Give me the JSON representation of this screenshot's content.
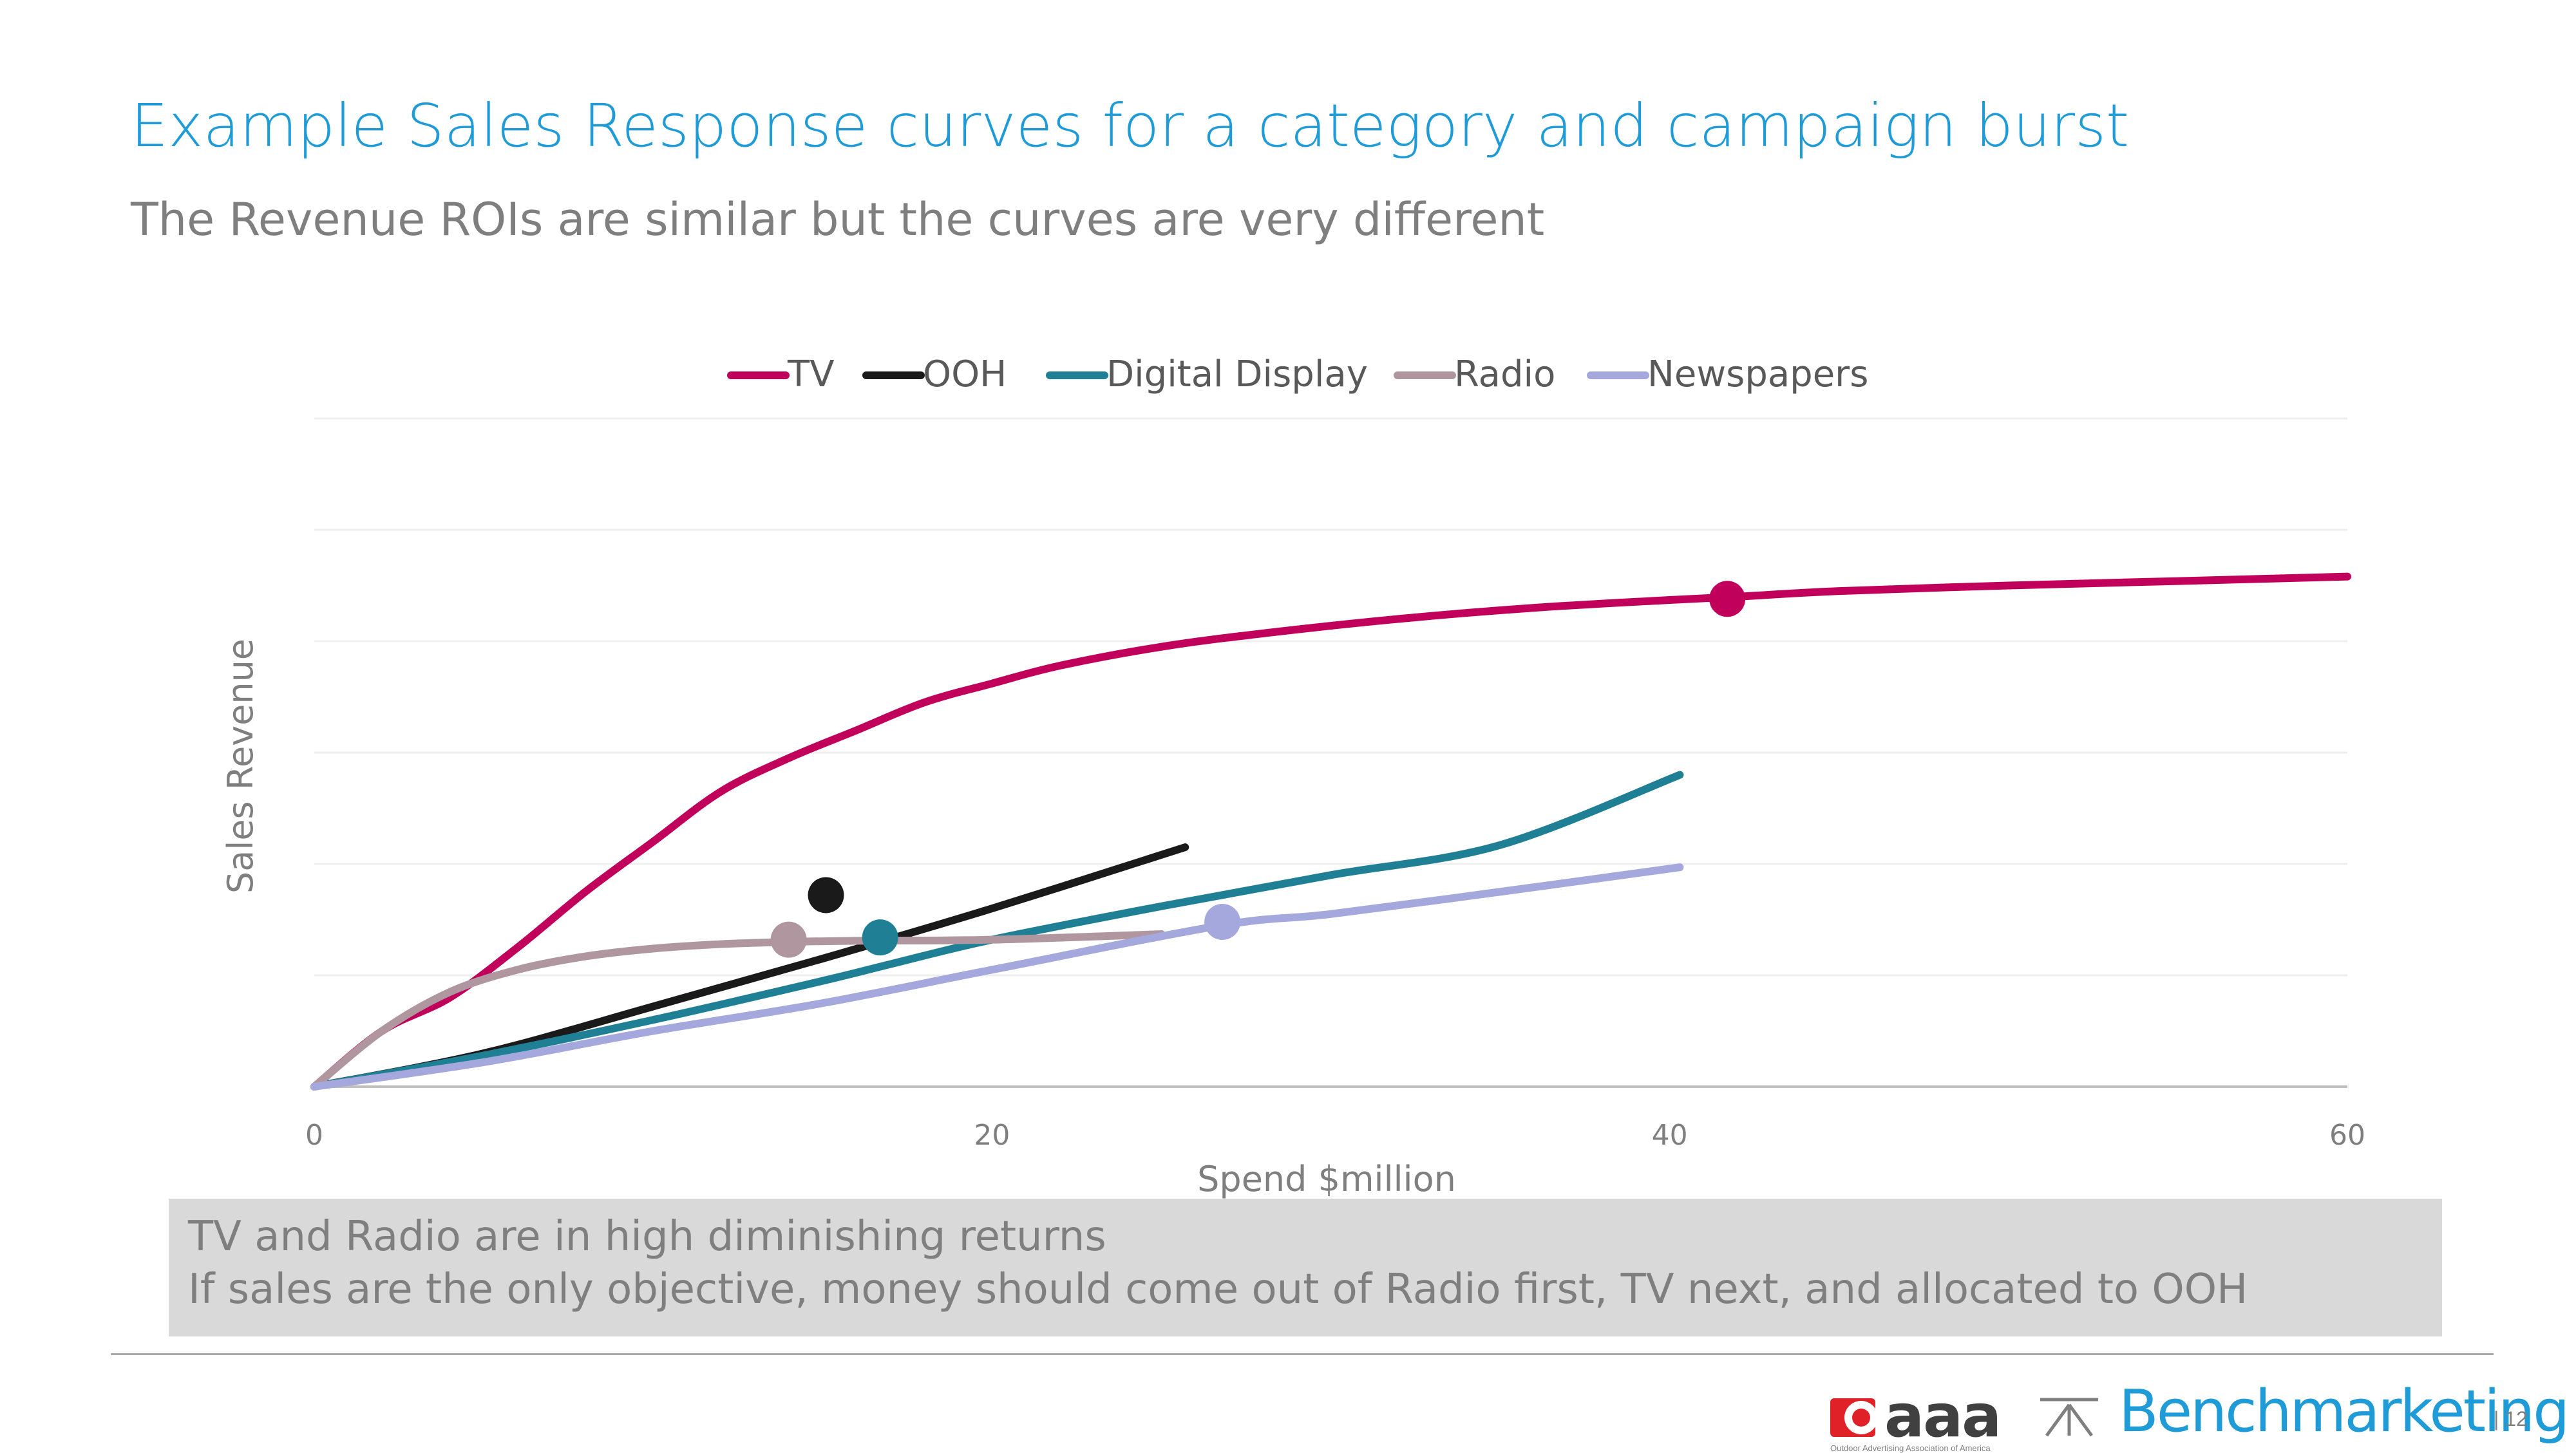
{
  "slide": {
    "title": "Example Sales Response curves for a category and campaign burst",
    "subtitle": "The Revenue ROIs are similar but the curves are very different",
    "callout": [
      "TV and Radio are in high diminishing returns",
      "If sales are the only objective, money should come out of Radio first, TV next, and allocated to OOH"
    ],
    "page_number": "| 12",
    "logos": {
      "oaaa_name": "aaa",
      "oaaa_tagline": "Outdoor Advertising Association of America",
      "benchmarketing": "Benchmarketing"
    }
  },
  "chart_data": {
    "type": "line",
    "title": "",
    "xlabel": "Spend $million",
    "ylabel": "Sales Revenue",
    "xlim": [
      0,
      60
    ],
    "ylim": [
      0,
      6
    ],
    "x_ticks": [
      0,
      20,
      40,
      60
    ],
    "y_tick_labels_shown": false,
    "grid": "horizontal",
    "legend_position": "top",
    "series": [
      {
        "name": "TV",
        "color": "#c0005a",
        "points": [
          [
            0,
            0
          ],
          [
            2,
            0.5
          ],
          [
            4,
            0.8
          ],
          [
            6,
            1.25
          ],
          [
            8,
            1.75
          ],
          [
            10,
            2.2
          ],
          [
            12,
            2.65
          ],
          [
            14,
            2.95
          ],
          [
            16,
            3.2
          ],
          [
            18,
            3.45
          ],
          [
            20,
            3.62
          ],
          [
            22,
            3.78
          ],
          [
            25,
            3.95
          ],
          [
            28,
            4.07
          ],
          [
            32,
            4.2
          ],
          [
            36,
            4.3
          ],
          [
            40,
            4.37
          ],
          [
            42,
            4.4
          ],
          [
            45,
            4.45
          ],
          [
            50,
            4.5
          ],
          [
            55,
            4.54
          ],
          [
            60,
            4.58
          ]
        ],
        "marker": [
          41.7,
          4.38
        ]
      },
      {
        "name": "OOH",
        "color": "#1a1a1a",
        "points": [
          [
            0,
            0
          ],
          [
            5,
            0.3
          ],
          [
            10,
            0.72
          ],
          [
            15,
            1.15
          ],
          [
            20,
            1.6
          ],
          [
            25.7,
            2.15
          ]
        ],
        "marker": [
          15.1,
          1.72
        ]
      },
      {
        "name": "Digital Display",
        "color": "#1f7f95",
        "points": [
          [
            0,
            0
          ],
          [
            5,
            0.28
          ],
          [
            10,
            0.6
          ],
          [
            15,
            0.95
          ],
          [
            17,
            1.1
          ],
          [
            20,
            1.32
          ],
          [
            25,
            1.62
          ],
          [
            30,
            1.9
          ],
          [
            35,
            2.17
          ],
          [
            40.3,
            2.8
          ]
        ],
        "marker": [
          16.7,
          1.34
        ]
      },
      {
        "name": "Radio",
        "color": "#b0969e",
        "points": [
          [
            0,
            0
          ],
          [
            2,
            0.5
          ],
          [
            4,
            0.85
          ],
          [
            6,
            1.05
          ],
          [
            8,
            1.17
          ],
          [
            10,
            1.24
          ],
          [
            12,
            1.28
          ],
          [
            14,
            1.3
          ],
          [
            16,
            1.31
          ],
          [
            20,
            1.32
          ],
          [
            25,
            1.37
          ]
        ],
        "marker": [
          14.0,
          1.32
        ]
      },
      {
        "name": "Newspapers",
        "color": "#a5a8dc",
        "points": [
          [
            0,
            0
          ],
          [
            5,
            0.22
          ],
          [
            10,
            0.5
          ],
          [
            15,
            0.75
          ],
          [
            20,
            1.05
          ],
          [
            26.8,
            1.45
          ],
          [
            30,
            1.55
          ],
          [
            35,
            1.75
          ],
          [
            40.3,
            1.97
          ]
        ],
        "marker": [
          26.8,
          1.48
        ]
      }
    ]
  }
}
